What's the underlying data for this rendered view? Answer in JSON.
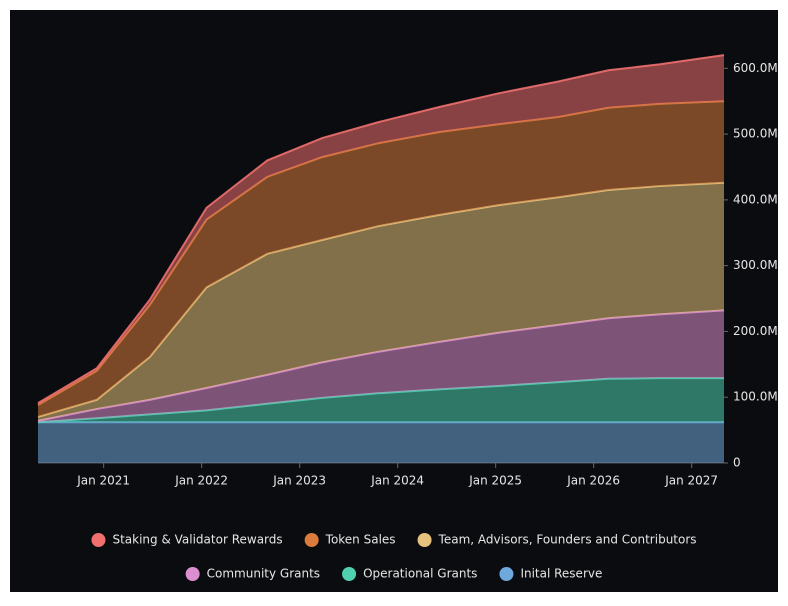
{
  "chart_data": {
    "type": "stacked-area",
    "x": [
      2020.33,
      2020.93,
      2021.47,
      2022.05,
      2022.67,
      2023.23,
      2023.8,
      2024.42,
      2025.03,
      2025.64,
      2026.15,
      2026.67,
      2027.33
    ],
    "xlim": [
      2020.33,
      2027.33
    ],
    "xticks": [
      {
        "value": 2021,
        "label": "Jan 2021"
      },
      {
        "value": 2022,
        "label": "Jan 2022"
      },
      {
        "value": 2023,
        "label": "Jan 2023"
      },
      {
        "value": 2024,
        "label": "Jan 2024"
      },
      {
        "value": 2025,
        "label": "Jan 2025"
      },
      {
        "value": 2026,
        "label": "Jan 2026"
      },
      {
        "value": 2027,
        "label": "Jan 2027"
      }
    ],
    "ylim": [
      0,
      640
    ],
    "yticks": [
      0,
      {
        "value": 100,
        "label": "100.0M"
      },
      {
        "value": 200,
        "label": "200.0M"
      },
      {
        "value": 300,
        "label": "300.0M"
      },
      {
        "value": 400,
        "label": "400.0M"
      },
      {
        "value": 500,
        "label": "500.0M"
      },
      {
        "value": 600,
        "label": "600.0M"
      }
    ],
    "series": [
      {
        "name": "Staking & Validator Rewards",
        "color": "#f07070",
        "values": [
          3,
          4,
          8,
          18,
          25,
          29,
          32,
          38,
          47,
          54,
          57,
          60,
          70
        ]
      },
      {
        "name": "Token Sales",
        "color": "#d97c3c",
        "values": [
          18,
          44,
          79,
          103,
          117,
          126,
          126,
          126,
          123,
          122,
          125,
          125,
          124
        ]
      },
      {
        "name": "Team, Advisors, Founders and Contributors",
        "color": "#e6c27c",
        "values": [
          6,
          14,
          65,
          153,
          184,
          186,
          191,
          193,
          194,
          194,
          195,
          195,
          194
        ]
      },
      {
        "name": "Community Grants",
        "color": "#dc8fd0",
        "values": [
          2,
          14,
          22,
          34,
          44,
          54,
          63,
          72,
          81,
          87,
          92,
          97,
          103
        ]
      },
      {
        "name": "Operational Grants",
        "color": "#4fd1b0",
        "values": [
          0,
          6,
          12,
          18,
          28,
          37,
          44,
          50,
          55,
          61,
          66,
          67,
          67
        ]
      },
      {
        "name": "Inital Reserve",
        "color": "#6fa8dc",
        "values": [
          62,
          62,
          62,
          62,
          62,
          62,
          62,
          62,
          62,
          62,
          62,
          62,
          62
        ]
      }
    ]
  }
}
